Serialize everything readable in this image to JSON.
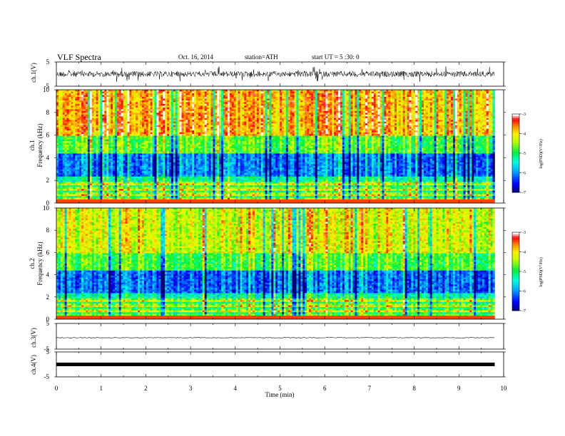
{
  "header": {
    "title": "VLF  Spectra",
    "date": "Oct. 16, 2014",
    "station": "station=ATH",
    "start": "start  UT  =   5  :30: 0"
  },
  "chart_data": [
    {
      "type": "line",
      "ylabel": "ch.1(V)",
      "ylim": [
        -5,
        5
      ],
      "y_ticks": [
        "5",
        "-5"
      ],
      "description_of_signal": "noisy VLF waveform about 0 V with spikes"
    },
    {
      "type": "heatmap",
      "ylabel_channel": "ch.1",
      "ylabel": "Frequency  (kHz)",
      "ylim": [
        0,
        10
      ],
      "y_ticks": [
        "0",
        "2",
        "4",
        "6",
        "8",
        "10"
      ],
      "colorbar": {
        "label": "log(PSD)(V²/Hz)",
        "range": [
          -7,
          -3
        ],
        "ticks": [
          "-3",
          "-4",
          "-5",
          "-6",
          "-7"
        ],
        "colors": [
          "#000080",
          "#0000ff",
          "#00a0ff",
          "#00ffff",
          "#00ff40",
          "#c0ff00",
          "#ffff00",
          "#ff8000",
          "#ff0000",
          "#ffffff"
        ]
      }
    },
    {
      "type": "heatmap",
      "ylabel_channel": "ch.2",
      "ylabel": "Frequency  (kHz)",
      "ylim": [
        0,
        10
      ],
      "y_ticks": [
        "0",
        "2",
        "4",
        "6",
        "8",
        "10"
      ],
      "colorbar": {
        "label": "log(PSD)(V²/Hz)",
        "range": [
          -7,
          -3
        ],
        "ticks": [
          "-3",
          "-4",
          "-5",
          "-6",
          "-7"
        ],
        "colors": [
          "#000080",
          "#0000ff",
          "#00a0ff",
          "#00ffff",
          "#00ff40",
          "#c0ff00",
          "#ffff00",
          "#ff8000",
          "#ff0000",
          "#ffffff"
        ]
      }
    },
    {
      "type": "line",
      "ylabel": "ch.3(V)",
      "ylim": [
        -5,
        5
      ],
      "y_ticks": [
        "5",
        "-5"
      ]
    },
    {
      "type": "line",
      "ylabel": "ch.4(V)",
      "ylim": [
        -5,
        5
      ],
      "y_ticks": [
        "5",
        "-5"
      ]
    }
  ],
  "x_axis": {
    "label": "Time  (min)",
    "xlim": [
      0,
      10
    ],
    "ticks": [
      "0",
      "1",
      "2",
      "3",
      "4",
      "5",
      "6",
      "7",
      "8",
      "9",
      "10"
    ],
    "data_end": 9.8
  }
}
